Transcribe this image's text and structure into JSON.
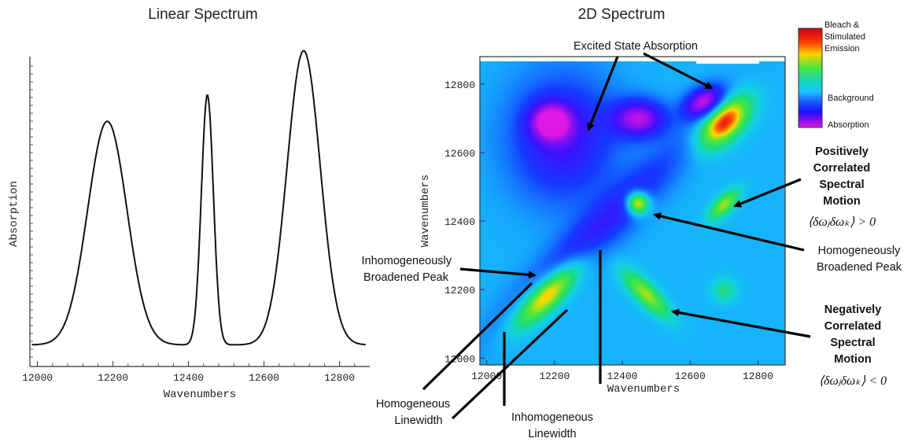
{
  "chart_data": [
    {
      "type": "line",
      "title": "Linear Spectrum",
      "xlabel": "Wavenumbers",
      "ylabel": "Absorption",
      "xlim": [
        11980,
        12880
      ],
      "ylim": [
        0,
        1.0
      ],
      "xticks": [
        "12000",
        "12200",
        "12400",
        "12600",
        "12800"
      ],
      "peaks": [
        {
          "center": 12185,
          "width": 52,
          "height": 0.76
        },
        {
          "center": 12450,
          "width": 16,
          "height": 0.85
        },
        {
          "center": 12705,
          "width": 44,
          "height": 1.0
        }
      ],
      "baseline": 0.02
    },
    {
      "type": "heatmap",
      "title": "2D Spectrum",
      "xlabel": "Wavenumbers",
      "ylabel": "Wavenumbers",
      "xlim": [
        11980,
        12880
      ],
      "ylim": [
        11980,
        12880
      ],
      "xticks": [
        "12000",
        "12200",
        "12400",
        "12600",
        "12800"
      ],
      "yticks": [
        "12000",
        "12200",
        "12400",
        "12600",
        "12800"
      ],
      "colorbar": {
        "top_label": "Bleach & Stimulated Emission",
        "top_lines": [
          "Bleach &",
          "Stimulated",
          "Emission"
        ],
        "middle_label": "Background",
        "bottom_label": "Absorption"
      },
      "bleach_features": [
        {
          "x": 12180,
          "y": 12190,
          "sx": 95,
          "sy": 30,
          "angle": 45,
          "amp": 0.95
        },
        {
          "x": 12445,
          "y": 12460,
          "sx": 24,
          "sy": 24,
          "angle": 0,
          "amp": 1.0
        },
        {
          "x": 12700,
          "y": 12700,
          "sx": 65,
          "sy": 35,
          "angle": 45,
          "amp": 1.0
        },
        {
          "x": 12700,
          "y": 12455,
          "sx": 40,
          "sy": 18,
          "angle": 45,
          "amp": 0.6
        },
        {
          "x": 12470,
          "y": 12190,
          "sx": 65,
          "sy": 22,
          "angle": -45,
          "amp": 0.6
        },
        {
          "x": 12700,
          "y": 12200,
          "sx": 26,
          "sy": 26,
          "angle": 0,
          "amp": 0.28
        }
      ],
      "absorption_features": [
        {
          "x": 12225,
          "y": 12650,
          "sx": 110,
          "sy": 130,
          "angle": 0,
          "amp": 0.55
        },
        {
          "x": 12330,
          "y": 12380,
          "sx": 270,
          "sy": 45,
          "angle": 45,
          "amp": 0.45
        },
        {
          "x": 12190,
          "y": 12700,
          "sx": 42,
          "sy": 38,
          "angle": 0,
          "amp": 0.85
        },
        {
          "x": 12450,
          "y": 12710,
          "sx": 55,
          "sy": 38,
          "angle": 0,
          "amp": 0.85
        },
        {
          "x": 12640,
          "y": 12760,
          "sx": 45,
          "sy": 28,
          "angle": 30,
          "amp": 0.9
        }
      ]
    }
  ],
  "annotations": {
    "esa": "Excited State Absorption",
    "inhomog_peak": [
      "Inhomogeneously",
      "Broadened Peak"
    ],
    "homog_peak": [
      "Homogeneously",
      "Broadened Peak"
    ],
    "pos_corr": [
      "Positively",
      "Correlated",
      "Spectral",
      "Motion"
    ],
    "neg_corr": [
      "Negatively",
      "Correlated",
      "Spectral",
      "Motion"
    ],
    "pos_formula": "⟨δωⱼδωₖ⟩ > 0",
    "neg_formula": "⟨δωⱼδωₖ⟩ < 0",
    "homog_lw": [
      "Homogeneous",
      "Linewidth"
    ],
    "inhomog_lw": [
      "Inhomogeneous",
      "Linewidth"
    ]
  }
}
